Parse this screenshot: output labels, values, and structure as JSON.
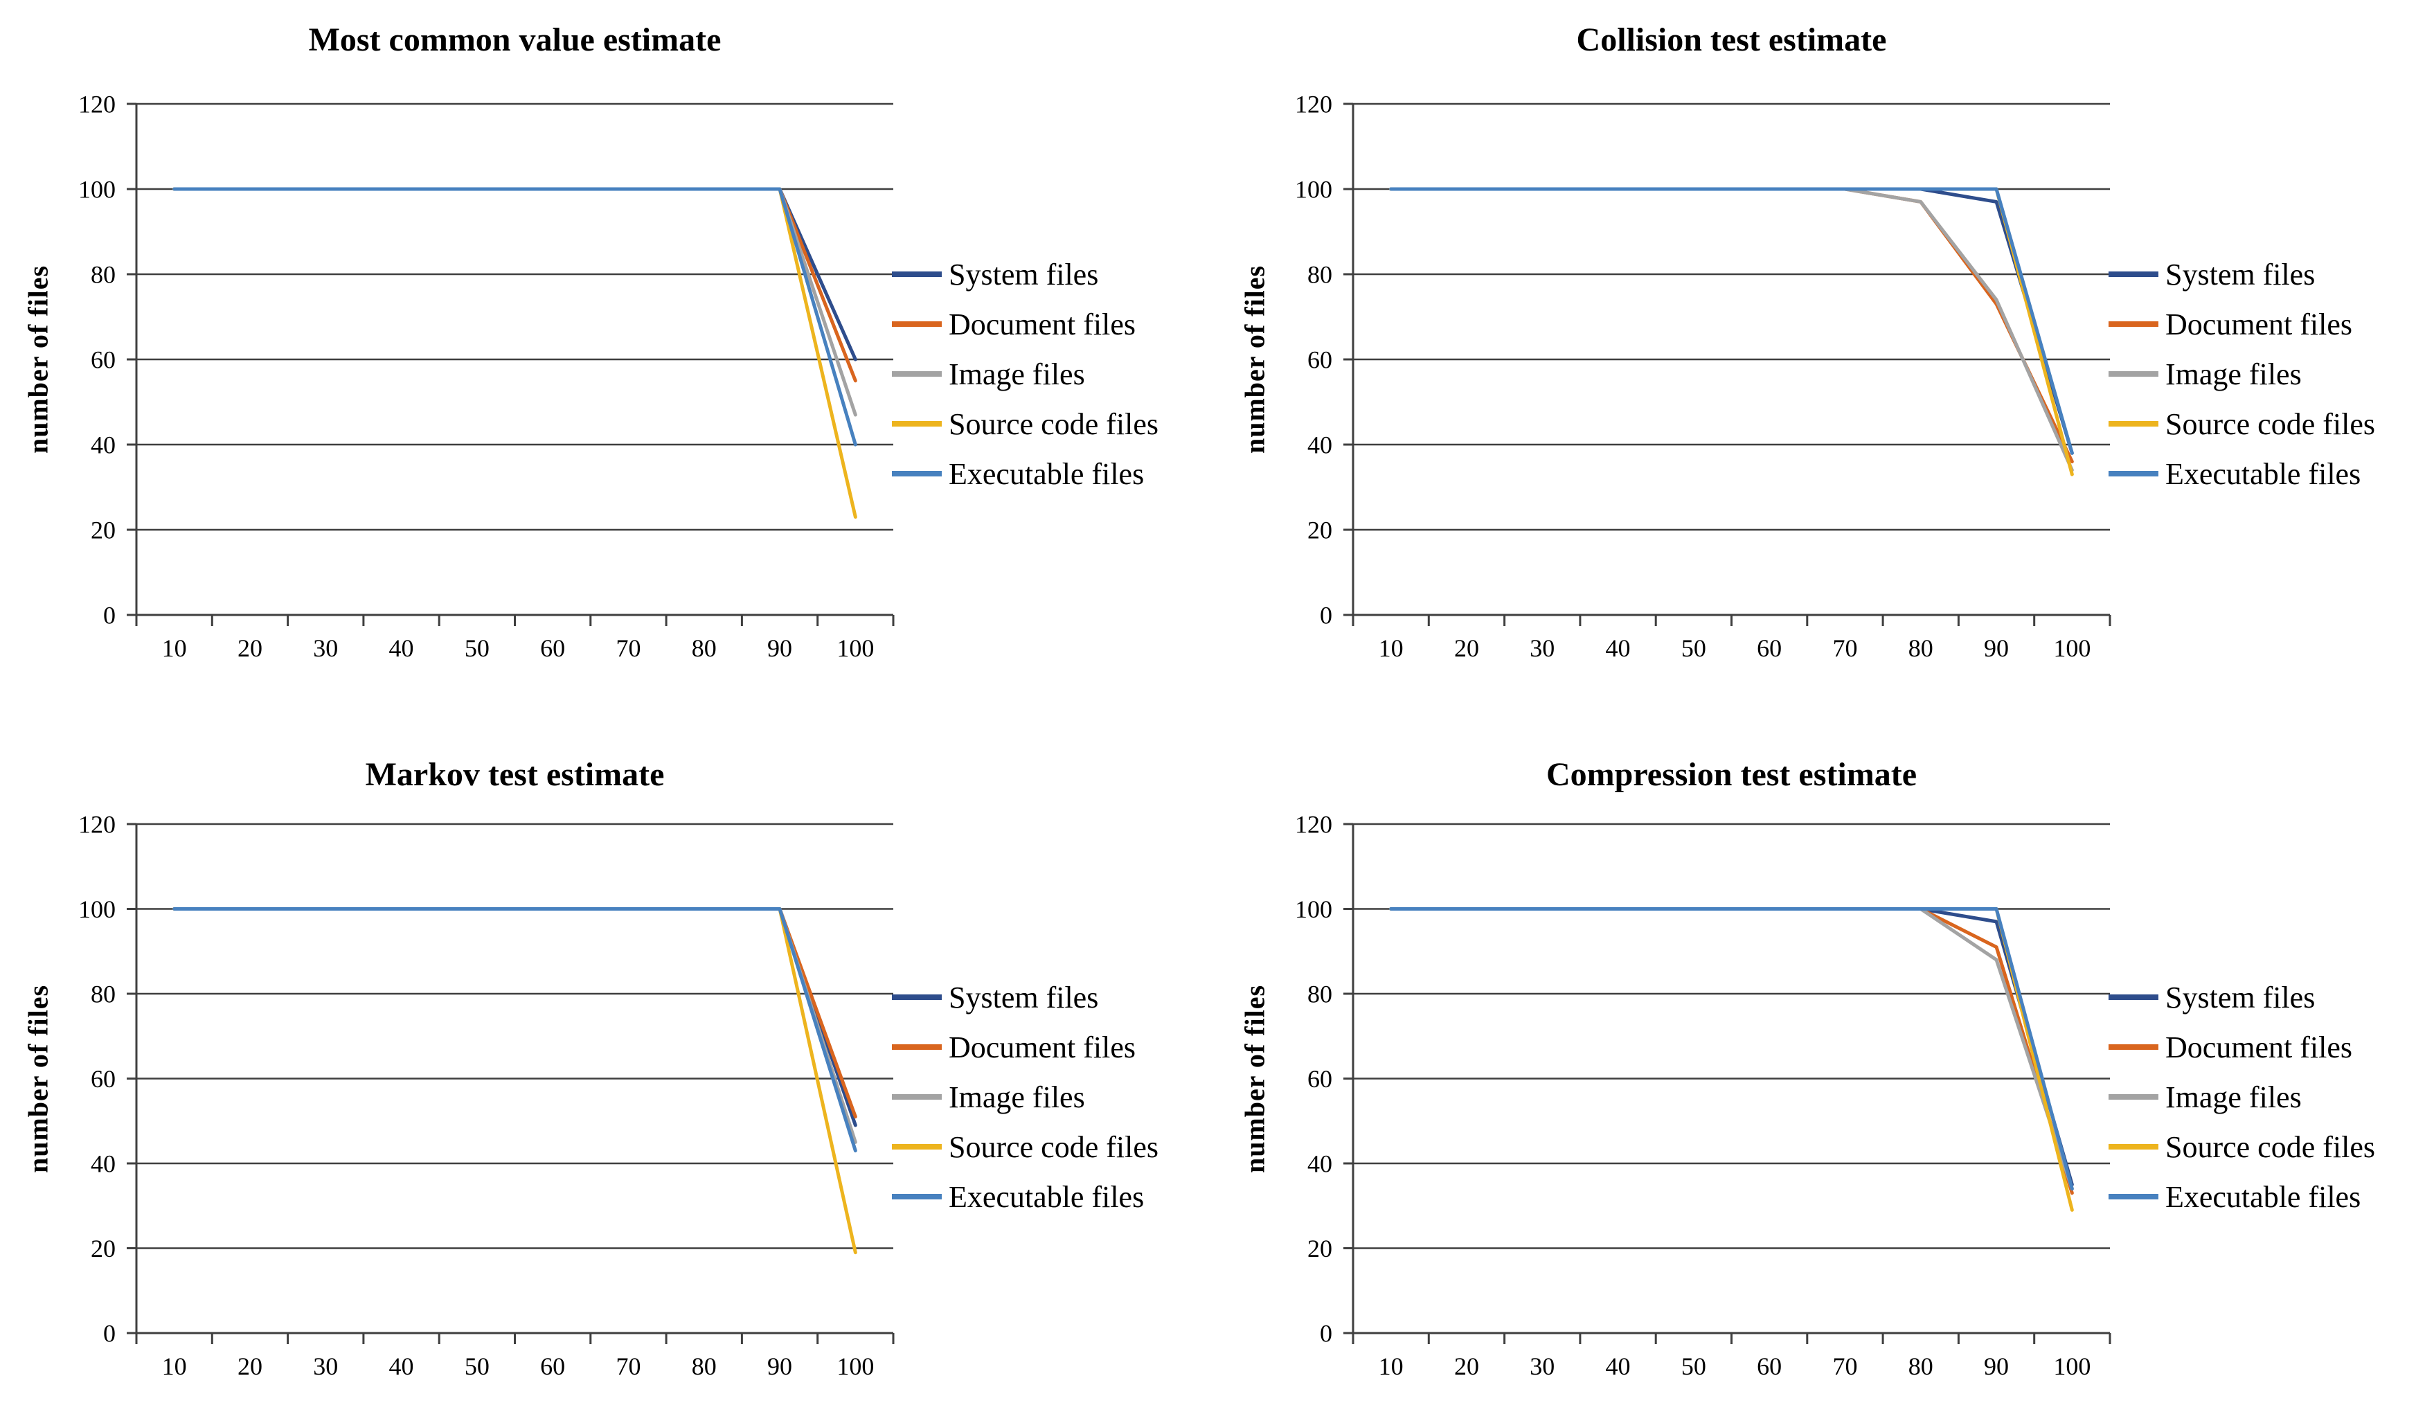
{
  "style": {
    "background": "#ffffff",
    "grid_color": "#3f3f3f",
    "text_color": "#000000",
    "palette": {
      "system": "#2E4D8C",
      "document": "#D9651E",
      "image": "#A3A3A3",
      "source": "#EDB41E",
      "executable": "#4781BF"
    }
  },
  "chart_data": [
    {
      "type": "line",
      "title": "Most common value estimate",
      "xlabel": "",
      "ylabel": "number of files",
      "x": [
        10,
        20,
        30,
        40,
        50,
        60,
        70,
        80,
        90,
        100
      ],
      "ylim": [
        0,
        120
      ],
      "yticks": [
        0,
        20,
        40,
        60,
        80,
        100,
        120
      ],
      "grid": true,
      "legend_position": "right",
      "series": [
        {
          "name": "System files",
          "key": "system",
          "values": [
            100,
            100,
            100,
            100,
            100,
            100,
            100,
            100,
            100,
            60
          ]
        },
        {
          "name": "Document files",
          "key": "document",
          "values": [
            100,
            100,
            100,
            100,
            100,
            100,
            100,
            100,
            100,
            55
          ]
        },
        {
          "name": "Image files",
          "key": "image",
          "values": [
            100,
            100,
            100,
            100,
            100,
            100,
            100,
            100,
            100,
            47
          ]
        },
        {
          "name": "Source code files",
          "key": "source",
          "values": [
            100,
            100,
            100,
            100,
            100,
            100,
            100,
            100,
            100,
            23
          ]
        },
        {
          "name": "Executable files",
          "key": "executable",
          "values": [
            100,
            100,
            100,
            100,
            100,
            100,
            100,
            100,
            100,
            40
          ]
        }
      ]
    },
    {
      "type": "line",
      "title": "Collision test estimate",
      "xlabel": "",
      "ylabel": "number of files",
      "x": [
        10,
        20,
        30,
        40,
        50,
        60,
        70,
        80,
        90,
        100
      ],
      "ylim": [
        0,
        120
      ],
      "yticks": [
        0,
        20,
        40,
        60,
        80,
        100,
        120
      ],
      "grid": true,
      "legend_position": "right",
      "series": [
        {
          "name": "System files",
          "key": "system",
          "values": [
            100,
            100,
            100,
            100,
            100,
            100,
            100,
            100,
            97,
            38
          ]
        },
        {
          "name": "Document files",
          "key": "document",
          "values": [
            100,
            100,
            100,
            100,
            100,
            100,
            100,
            97,
            73,
            36
          ]
        },
        {
          "name": "Image files",
          "key": "image",
          "values": [
            100,
            100,
            100,
            100,
            100,
            100,
            100,
            97,
            74,
            34
          ]
        },
        {
          "name": "Source code files",
          "key": "source",
          "values": [
            100,
            100,
            100,
            100,
            100,
            100,
            100,
            100,
            100,
            33
          ]
        },
        {
          "name": "Executable files",
          "key": "executable",
          "values": [
            100,
            100,
            100,
            100,
            100,
            100,
            100,
            100,
            100,
            38
          ]
        }
      ]
    },
    {
      "type": "line",
      "title": "Markov test estimate",
      "xlabel": "",
      "ylabel": "number of files",
      "x": [
        10,
        20,
        30,
        40,
        50,
        60,
        70,
        80,
        90,
        100
      ],
      "ylim": [
        0,
        120
      ],
      "yticks": [
        0,
        20,
        40,
        60,
        80,
        100,
        120
      ],
      "grid": true,
      "legend_position": "right",
      "series": [
        {
          "name": "System files",
          "key": "system",
          "values": [
            100,
            100,
            100,
            100,
            100,
            100,
            100,
            100,
            100,
            49
          ]
        },
        {
          "name": "Document files",
          "key": "document",
          "values": [
            100,
            100,
            100,
            100,
            100,
            100,
            100,
            100,
            100,
            51
          ]
        },
        {
          "name": "Image files",
          "key": "image",
          "values": [
            100,
            100,
            100,
            100,
            100,
            100,
            100,
            100,
            100,
            45
          ]
        },
        {
          "name": "Source code files",
          "key": "source",
          "values": [
            100,
            100,
            100,
            100,
            100,
            100,
            100,
            100,
            100,
            19
          ]
        },
        {
          "name": "Executable files",
          "key": "executable",
          "values": [
            100,
            100,
            100,
            100,
            100,
            100,
            100,
            100,
            100,
            43
          ]
        }
      ]
    },
    {
      "type": "line",
      "title": "Compression test estimate",
      "xlabel": "",
      "ylabel": "number of files",
      "x": [
        10,
        20,
        30,
        40,
        50,
        60,
        70,
        80,
        90,
        100
      ],
      "ylim": [
        0,
        120
      ],
      "yticks": [
        0,
        20,
        40,
        60,
        80,
        100,
        120
      ],
      "grid": true,
      "legend_position": "right",
      "series": [
        {
          "name": "System files",
          "key": "system",
          "values": [
            100,
            100,
            100,
            100,
            100,
            100,
            100,
            100,
            97,
            35
          ]
        },
        {
          "name": "Document files",
          "key": "document",
          "values": [
            100,
            100,
            100,
            100,
            100,
            100,
            100,
            100,
            91,
            33
          ]
        },
        {
          "name": "Image files",
          "key": "image",
          "values": [
            100,
            100,
            100,
            100,
            100,
            100,
            100,
            100,
            88,
            34
          ]
        },
        {
          "name": "Source code files",
          "key": "source",
          "values": [
            100,
            100,
            100,
            100,
            100,
            100,
            100,
            100,
            100,
            29
          ]
        },
        {
          "name": "Executable files",
          "key": "executable",
          "values": [
            100,
            100,
            100,
            100,
            100,
            100,
            100,
            100,
            100,
            34
          ]
        }
      ]
    }
  ]
}
